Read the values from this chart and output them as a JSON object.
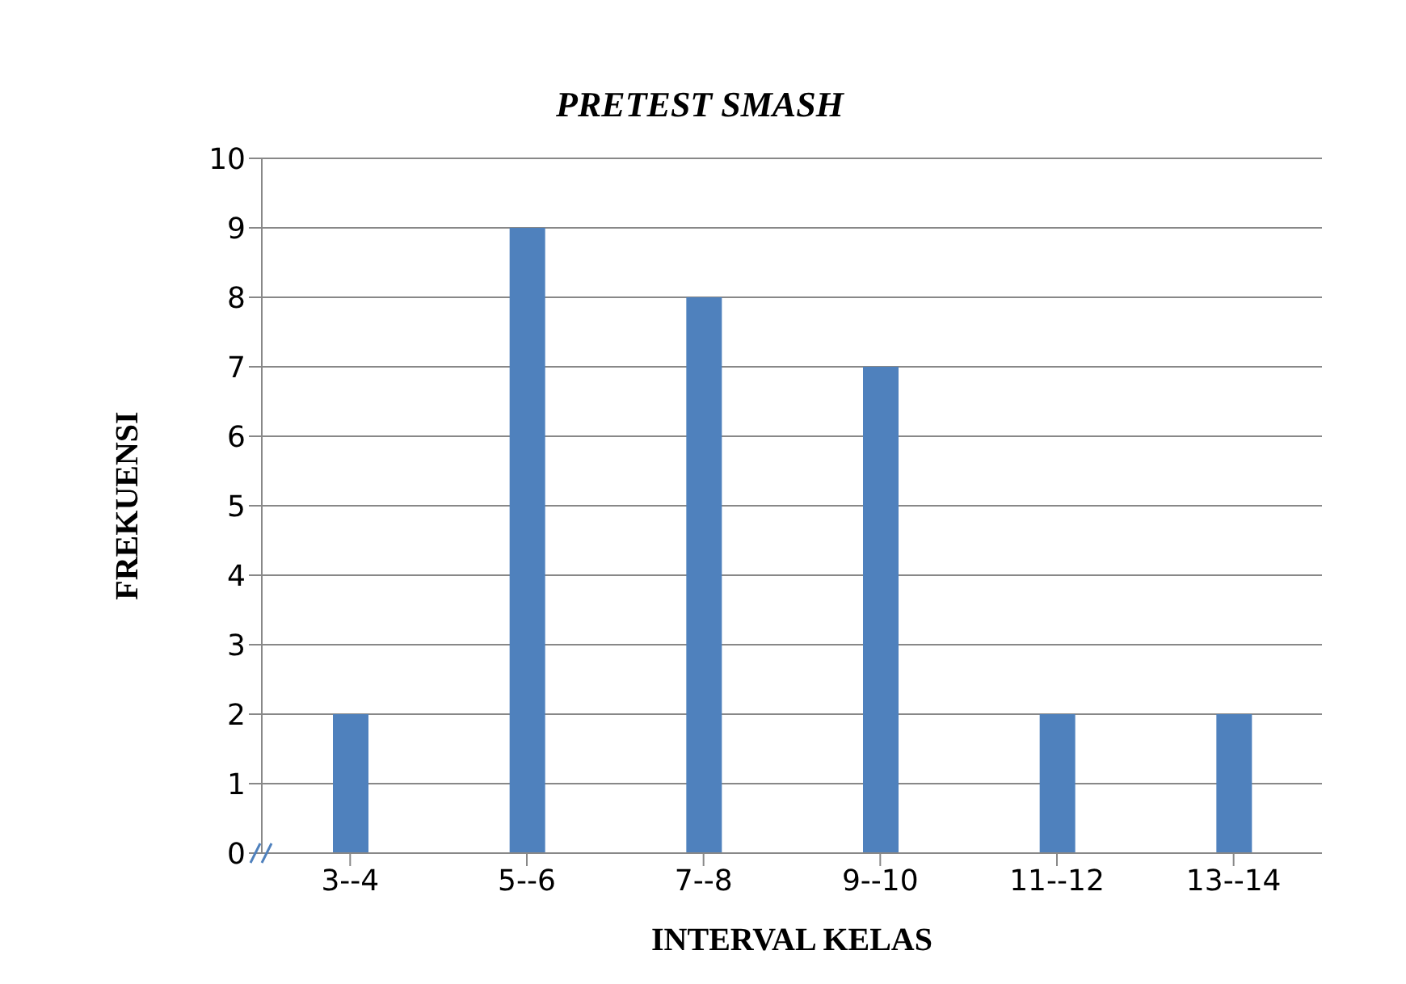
{
  "chart_data": {
    "type": "bar",
    "title": "PRETEST SMASH",
    "xlabel": "INTERVAL KELAS",
    "ylabel": "FREKUENSI",
    "categories": [
      "3--4",
      "5--6",
      "7--8",
      "9--10",
      "11--12",
      "13--14"
    ],
    "values": [
      2,
      9,
      8,
      7,
      2,
      2
    ],
    "color": "#4f81bd",
    "ylim": [
      0,
      10
    ],
    "yticks": [
      0,
      1,
      2,
      3,
      4,
      5,
      6,
      7,
      8,
      9,
      10
    ],
    "grid": "y",
    "legend": false
  }
}
